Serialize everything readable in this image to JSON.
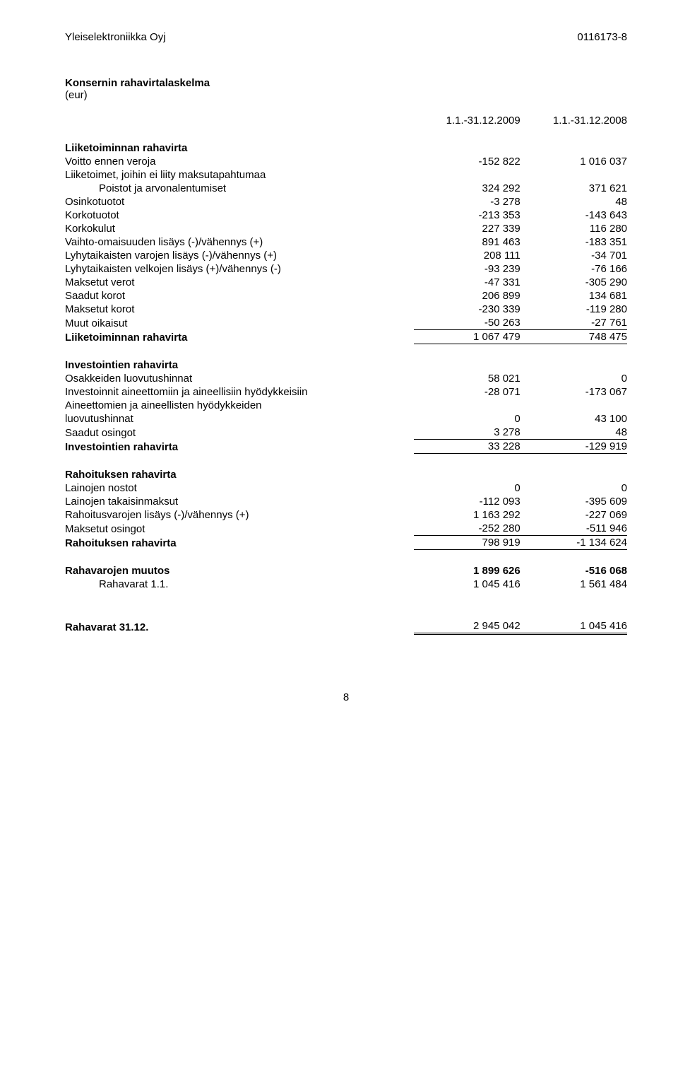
{
  "header": {
    "company": "Yleiselektroniikka Oyj",
    "regno": "0116173-8"
  },
  "title": "Konsernin rahavirtalaskelma",
  "unit": "(eur)",
  "periods": {
    "current": "1.1.-31.12.2009",
    "prior": "1.1.-31.12.2008"
  },
  "sections": {
    "operating": {
      "heading": "Liiketoiminnan rahavirta",
      "rows": [
        {
          "label": "Voitto ennen veroja",
          "c": "-152 822",
          "p": "1 016 037"
        },
        {
          "label": "Liiketoimet, joihin ei liity maksutapahtumaa"
        },
        {
          "label": "Poistot ja arvonalentumiset",
          "c": "324 292",
          "p": "371 621",
          "indent": 1
        },
        {
          "label": "Osinkotuotot",
          "c": "-3 278",
          "p": "48"
        },
        {
          "label": "Korkotuotot",
          "c": "-213 353",
          "p": "-143 643"
        },
        {
          "label": "Korkokulut",
          "c": "227 339",
          "p": "116 280"
        },
        {
          "label": "Vaihto-omaisuuden lisäys (-)/vähennys (+)",
          "c": "891 463",
          "p": "-183 351"
        },
        {
          "label": "Lyhytaikaisten varojen lisäys (-)/vähennys (+)",
          "c": "208 111",
          "p": "-34 701"
        },
        {
          "label": "Lyhytaikaisten velkojen lisäys (+)/vähennys (-)",
          "c": "-93 239",
          "p": "-76 166"
        },
        {
          "label": "Maksetut verot",
          "c": "-47 331",
          "p": "-305 290"
        },
        {
          "label": "Saadut korot",
          "c": "206 899",
          "p": "134 681"
        },
        {
          "label": "Maksetut korot",
          "c": "-230 339",
          "p": "-119 280"
        },
        {
          "label": "Muut oikaisut",
          "c": "-50 263",
          "p": "-27 761",
          "underline_bottom": true
        }
      ],
      "total": {
        "label": "Liiketoiminnan rahavirta",
        "c": "1 067 479",
        "p": "748 475",
        "underline_bottom": true
      }
    },
    "investing": {
      "heading": "Investointien rahavirta",
      "rows": [
        {
          "label": "Osakkeiden luovutushinnat",
          "c": "58 021",
          "p": "0"
        },
        {
          "label": "Investoinnit aineettomiin ja aineellisiin hyödykkeisiin",
          "c": "-28 071",
          "p": "-173 067"
        },
        {
          "label": "Aineettomien ja aineellisten hyödykkeiden"
        },
        {
          "label": "luovutushinnat",
          "c": "0",
          "p": "43 100"
        },
        {
          "label": "Saadut osingot",
          "c": "3 278",
          "p": "48",
          "underline_bottom": true
        }
      ],
      "total": {
        "label": "Investointien rahavirta",
        "c": "33 228",
        "p": "-129 919",
        "underline_bottom": true
      }
    },
    "financing": {
      "heading": "Rahoituksen rahavirta",
      "rows": [
        {
          "label": "Lainojen nostot",
          "c": "0",
          "p": "0"
        },
        {
          "label": "Lainojen takaisinmaksut",
          "c": "-112 093",
          "p": "-395 609"
        },
        {
          "label": "Rahoitusvarojen lisäys (-)/vähennys (+)",
          "c": "1 163 292",
          "p": "-227 069"
        },
        {
          "label": "Maksetut osingot",
          "c": "-252 280",
          "p": "-511 946",
          "underline_bottom": true
        }
      ],
      "total": {
        "label": "Rahoituksen rahavirta",
        "c": "798 919",
        "p": "-1 134 624",
        "underline_bottom": true
      }
    },
    "change": {
      "label": "Rahavarojen muutos",
      "c": "1 899 626",
      "p": "-516 068",
      "bold": true
    },
    "opening": {
      "label": "Rahavarat 1.1.",
      "c": "1 045 416",
      "p": "1 561 484"
    },
    "closing": {
      "label": "Rahavarat 31.12.",
      "c": "2 945 042",
      "p": "1 045 416",
      "bold": true,
      "double": true
    }
  },
  "page_number": "8"
}
